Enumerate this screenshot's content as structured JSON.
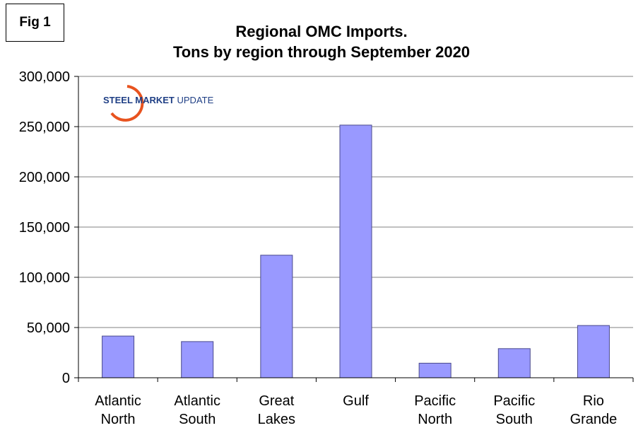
{
  "fig_label": "Fig 1",
  "logo": {
    "bold": "STEEL MARKET",
    "plain": " UPDATE"
  },
  "colors": {
    "bar_fill": "#9999ff",
    "bar_stroke": "#4a4a8c",
    "grid": "#808080",
    "logo_blue": "#1f3f85",
    "logo_orange": "#e8531f"
  },
  "chart_data": {
    "type": "bar",
    "title": [
      "Regional OMC Imports.",
      "Tons by region through September 2020"
    ],
    "categories": [
      [
        "Atlantic",
        "North"
      ],
      [
        "Atlantic",
        "South"
      ],
      [
        "Great",
        "Lakes"
      ],
      [
        "Gulf"
      ],
      [
        "Pacific",
        "North"
      ],
      [
        "Pacific",
        "South"
      ],
      [
        "Rio",
        "Grande"
      ]
    ],
    "values": [
      41500,
      36000,
      122000,
      251500,
      14500,
      29000,
      52000
    ],
    "ylim": [
      0,
      300000
    ],
    "yticks": [
      0,
      50000,
      100000,
      150000,
      200000,
      250000,
      300000
    ],
    "ytick_labels": [
      "0",
      "50,000",
      "100,000",
      "150,000",
      "200,000",
      "250,000",
      "300,000"
    ],
    "grid": true,
    "legend": false
  }
}
